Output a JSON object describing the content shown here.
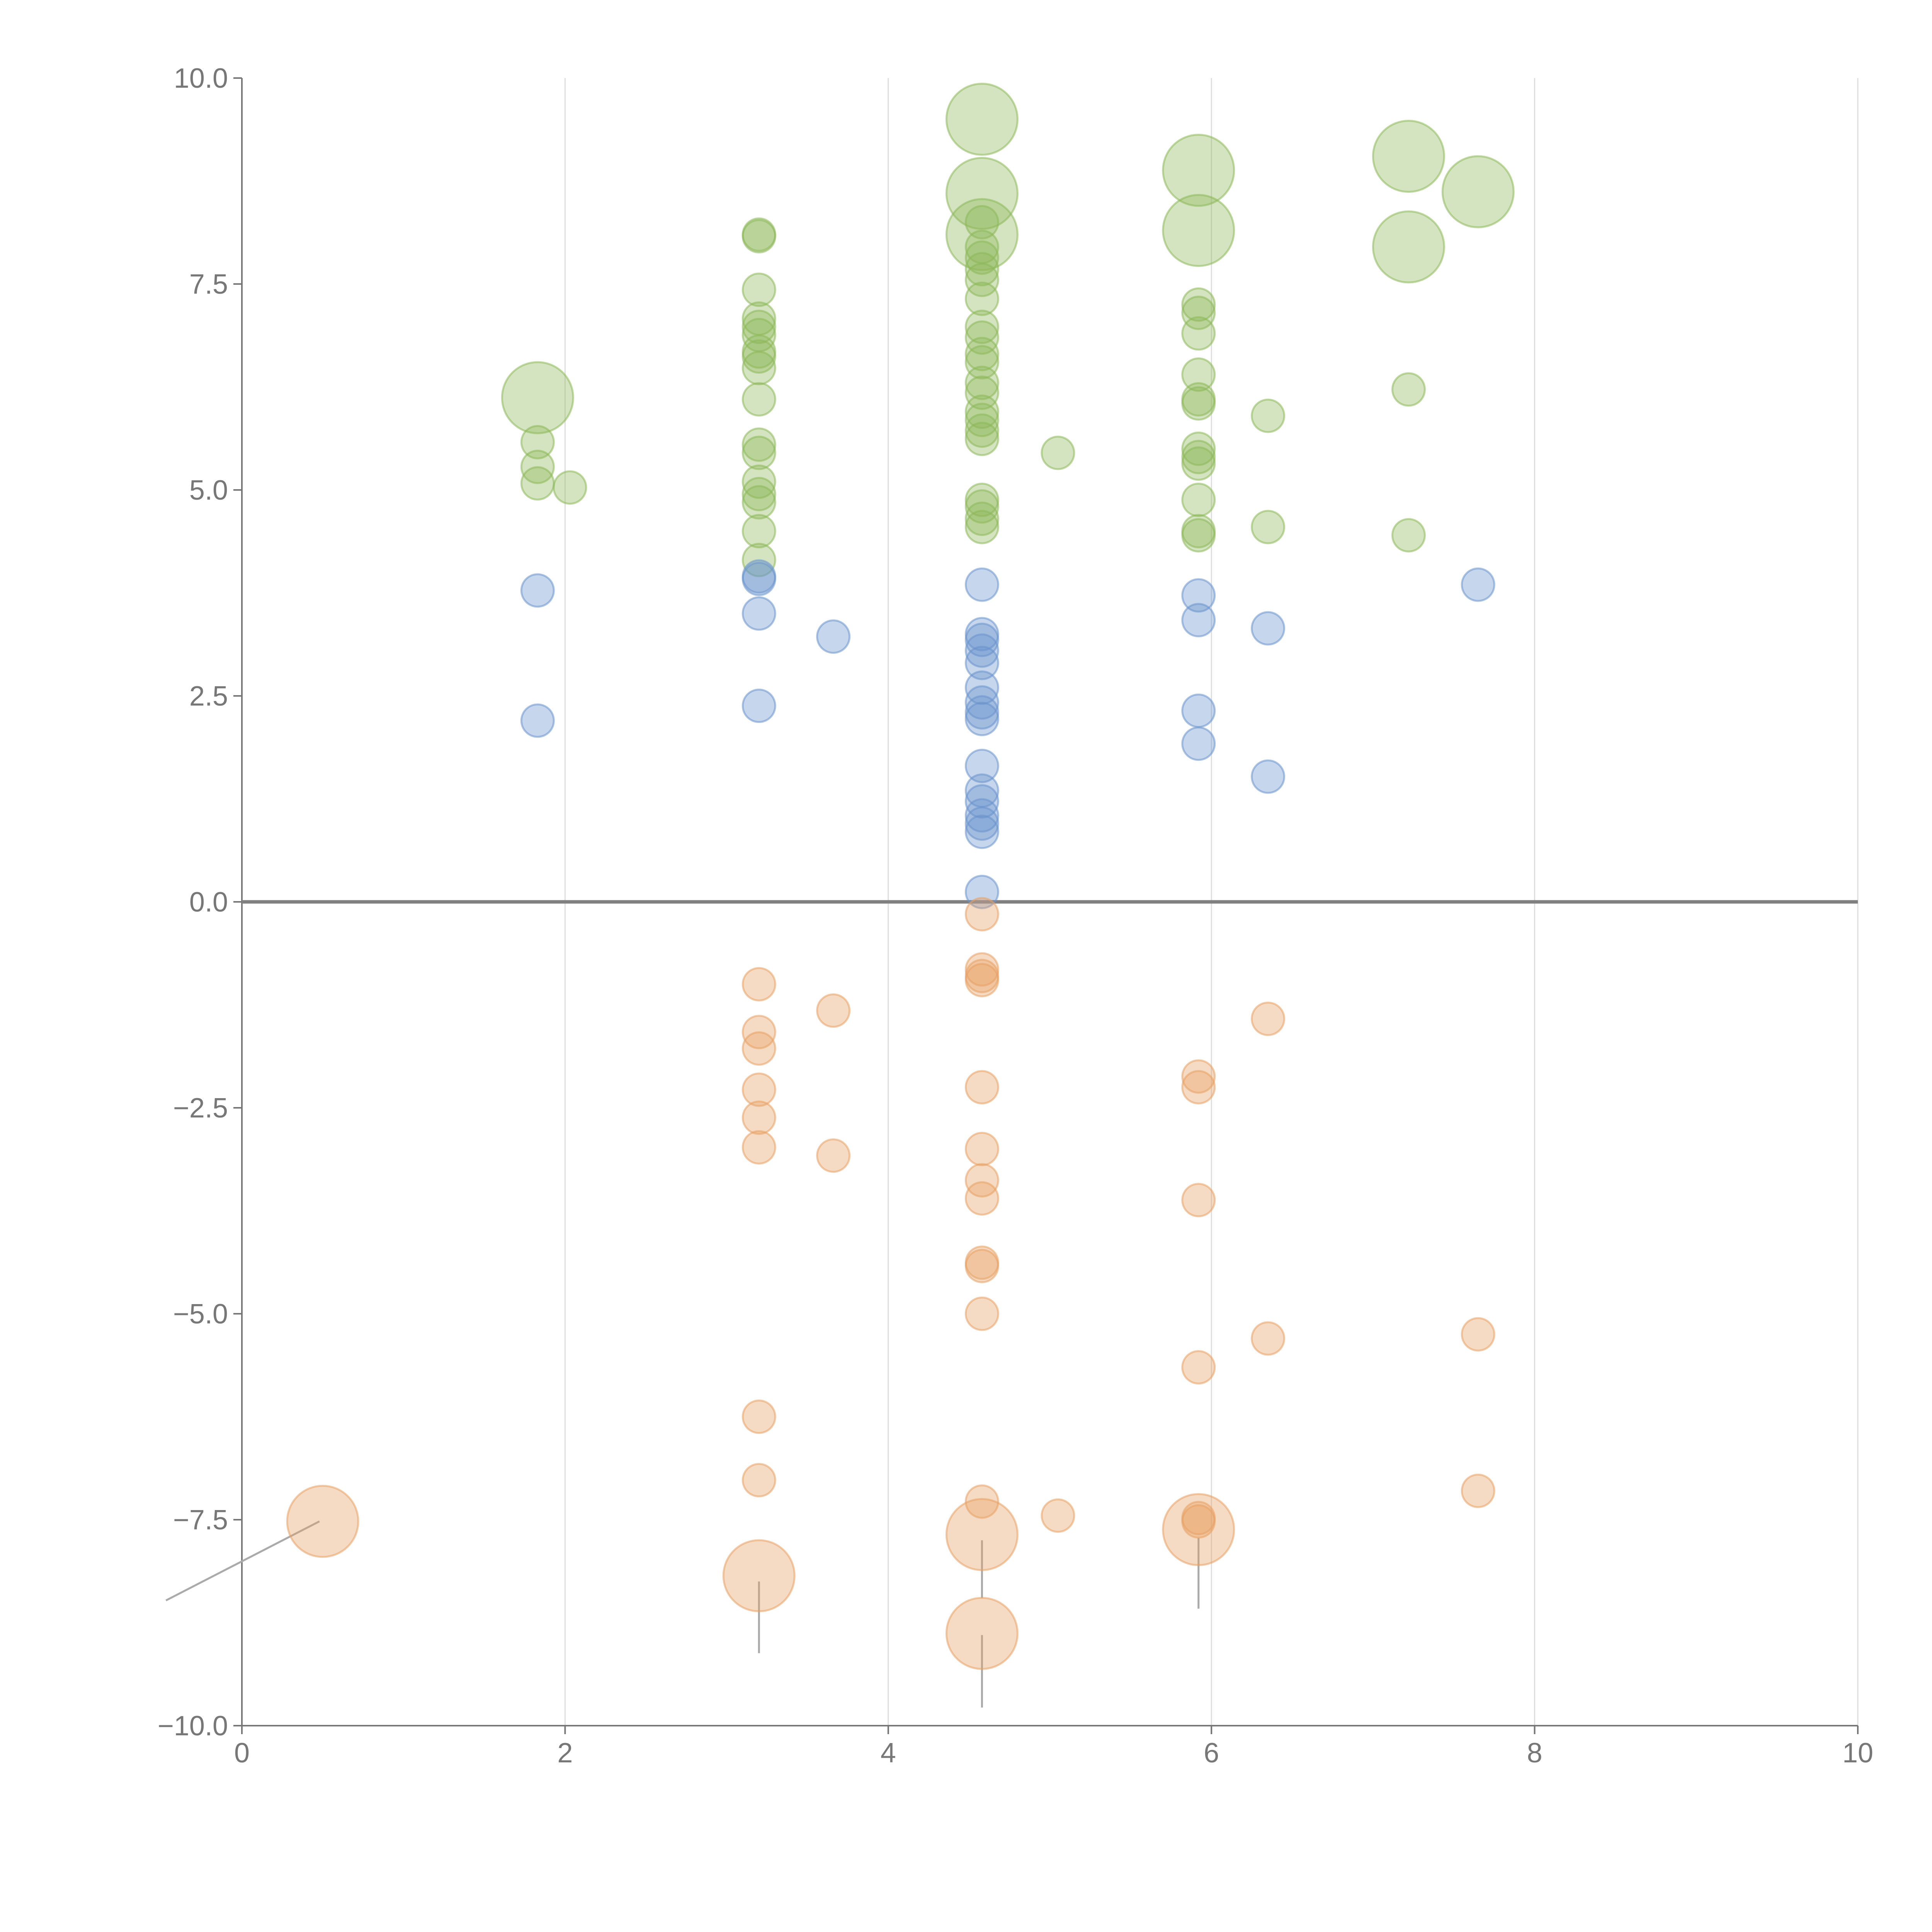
{
  "chart_data": {
    "type": "scatter",
    "title": "",
    "xlabel": "",
    "ylabel": "",
    "xlim": [
      0,
      10
    ],
    "ylim": [
      -10,
      10
    ],
    "grid": "vertical",
    "x_ticks": [
      0,
      2,
      4,
      6,
      8,
      10
    ],
    "x_tick_labels": [
      "0",
      "2",
      "4",
      "6",
      "8",
      "10"
    ],
    "y_ticks": [
      10,
      7.5,
      5,
      2.5,
      0,
      -2.5,
      -5,
      -7.5,
      -10
    ],
    "y_tick_labels": [
      "10.0",
      "7.5",
      "5.0",
      "2.5",
      "0.0",
      "−2.5",
      "−5.0",
      "−7.5",
      "−10.0"
    ],
    "reference_line_y": 0,
    "series": [
      {
        "name": "green",
        "color": "#8db85a",
        "points": [
          {
            "x": 1.83,
            "y": 6.12,
            "r": 3
          },
          {
            "x": 1.83,
            "y": 5.58,
            "r": 1
          },
          {
            "x": 1.83,
            "y": 5.28,
            "r": 1
          },
          {
            "x": 1.83,
            "y": 5.08,
            "r": 1
          },
          {
            "x": 2.03,
            "y": 5.03,
            "r": 1
          },
          {
            "x": 3.2,
            "y": 8.1,
            "r": 1
          },
          {
            "x": 3.2,
            "y": 8.08,
            "r": 1
          },
          {
            "x": 3.2,
            "y": 7.43,
            "r": 1
          },
          {
            "x": 3.2,
            "y": 7.08,
            "r": 1
          },
          {
            "x": 3.2,
            "y": 6.98,
            "r": 1
          },
          {
            "x": 3.2,
            "y": 6.88,
            "r": 1
          },
          {
            "x": 3.2,
            "y": 6.68,
            "r": 1
          },
          {
            "x": 3.2,
            "y": 6.62,
            "r": 1
          },
          {
            "x": 3.2,
            "y": 6.48,
            "r": 1
          },
          {
            "x": 3.2,
            "y": 6.1,
            "r": 1
          },
          {
            "x": 3.2,
            "y": 5.55,
            "r": 1
          },
          {
            "x": 3.2,
            "y": 5.45,
            "r": 1
          },
          {
            "x": 3.2,
            "y": 5.1,
            "r": 1
          },
          {
            "x": 3.2,
            "y": 4.95,
            "r": 1
          },
          {
            "x": 3.2,
            "y": 4.85,
            "r": 1
          },
          {
            "x": 3.2,
            "y": 4.5,
            "r": 1
          },
          {
            "x": 3.2,
            "y": 4.15,
            "r": 1
          },
          {
            "x": 4.58,
            "y": 9.5,
            "r": 3
          },
          {
            "x": 4.58,
            "y": 8.6,
            "r": 3
          },
          {
            "x": 4.58,
            "y": 8.1,
            "r": 3
          },
          {
            "x": 4.58,
            "y": 8.25,
            "r": 1
          },
          {
            "x": 4.58,
            "y": 7.95,
            "r": 1
          },
          {
            "x": 4.58,
            "y": 7.82,
            "r": 1
          },
          {
            "x": 4.58,
            "y": 7.68,
            "r": 1
          },
          {
            "x": 4.58,
            "y": 7.55,
            "r": 1
          },
          {
            "x": 4.58,
            "y": 7.32,
            "r": 1
          },
          {
            "x": 4.58,
            "y": 6.98,
            "r": 1
          },
          {
            "x": 4.58,
            "y": 6.85,
            "r": 1
          },
          {
            "x": 4.58,
            "y": 6.65,
            "r": 1
          },
          {
            "x": 4.58,
            "y": 6.55,
            "r": 1
          },
          {
            "x": 4.58,
            "y": 6.3,
            "r": 1
          },
          {
            "x": 4.58,
            "y": 6.18,
            "r": 1
          },
          {
            "x": 4.58,
            "y": 5.95,
            "r": 1
          },
          {
            "x": 4.58,
            "y": 5.85,
            "r": 1
          },
          {
            "x": 4.58,
            "y": 5.72,
            "r": 1
          },
          {
            "x": 4.58,
            "y": 5.62,
            "r": 1
          },
          {
            "x": 4.58,
            "y": 4.88,
            "r": 1
          },
          {
            "x": 4.58,
            "y": 4.8,
            "r": 1
          },
          {
            "x": 4.58,
            "y": 4.65,
            "r": 1
          },
          {
            "x": 4.58,
            "y": 4.55,
            "r": 1
          },
          {
            "x": 5.05,
            "y": 5.45,
            "r": 1
          },
          {
            "x": 5.92,
            "y": 8.88,
            "r": 3
          },
          {
            "x": 5.92,
            "y": 8.15,
            "r": 3
          },
          {
            "x": 5.92,
            "y": 7.25,
            "r": 1
          },
          {
            "x": 5.92,
            "y": 7.15,
            "r": 1
          },
          {
            "x": 5.92,
            "y": 6.9,
            "r": 1
          },
          {
            "x": 5.92,
            "y": 6.4,
            "r": 1
          },
          {
            "x": 5.92,
            "y": 6.1,
            "r": 1
          },
          {
            "x": 5.92,
            "y": 6.05,
            "r": 1
          },
          {
            "x": 5.92,
            "y": 5.5,
            "r": 1
          },
          {
            "x": 5.92,
            "y": 5.4,
            "r": 1
          },
          {
            "x": 5.92,
            "y": 5.32,
            "r": 1
          },
          {
            "x": 5.92,
            "y": 4.88,
            "r": 1
          },
          {
            "x": 5.92,
            "y": 4.5,
            "r": 1
          },
          {
            "x": 5.92,
            "y": 4.45,
            "r": 1
          },
          {
            "x": 6.35,
            "y": 5.9,
            "r": 1
          },
          {
            "x": 6.35,
            "y": 4.55,
            "r": 1
          },
          {
            "x": 7.22,
            "y": 9.05,
            "r": 3
          },
          {
            "x": 7.22,
            "y": 7.95,
            "r": 3
          },
          {
            "x": 7.22,
            "y": 6.22,
            "r": 1
          },
          {
            "x": 7.22,
            "y": 4.45,
            "r": 1
          },
          {
            "x": 7.65,
            "y": 8.62,
            "r": 3
          }
        ]
      },
      {
        "name": "blue",
        "color": "#6a93cc",
        "points": [
          {
            "x": 1.83,
            "y": 3.78,
            "r": 1
          },
          {
            "x": 1.83,
            "y": 2.2,
            "r": 1
          },
          {
            "x": 3.2,
            "y": 3.95,
            "r": 1
          },
          {
            "x": 3.2,
            "y": 3.92,
            "r": 1
          },
          {
            "x": 3.2,
            "y": 3.5,
            "r": 1
          },
          {
            "x": 3.2,
            "y": 2.38,
            "r": 1
          },
          {
            "x": 3.66,
            "y": 3.22,
            "r": 1
          },
          {
            "x": 4.58,
            "y": 3.85,
            "r": 1
          },
          {
            "x": 4.58,
            "y": 3.25,
            "r": 1
          },
          {
            "x": 4.58,
            "y": 3.18,
            "r": 1
          },
          {
            "x": 4.58,
            "y": 3.05,
            "r": 1
          },
          {
            "x": 4.58,
            "y": 2.9,
            "r": 1
          },
          {
            "x": 4.58,
            "y": 2.6,
            "r": 1
          },
          {
            "x": 4.58,
            "y": 2.42,
            "r": 1
          },
          {
            "x": 4.58,
            "y": 2.3,
            "r": 1
          },
          {
            "x": 4.58,
            "y": 2.22,
            "r": 1
          },
          {
            "x": 4.58,
            "y": 1.65,
            "r": 1
          },
          {
            "x": 4.58,
            "y": 1.35,
            "r": 1
          },
          {
            "x": 4.58,
            "y": 1.22,
            "r": 1
          },
          {
            "x": 4.58,
            "y": 1.05,
            "r": 1
          },
          {
            "x": 4.58,
            "y": 0.95,
            "r": 1
          },
          {
            "x": 4.58,
            "y": 0.85,
            "r": 1
          },
          {
            "x": 4.58,
            "y": 0.12,
            "r": 1
          },
          {
            "x": 5.92,
            "y": 3.72,
            "r": 1
          },
          {
            "x": 5.92,
            "y": 3.42,
            "r": 1
          },
          {
            "x": 5.92,
            "y": 2.32,
            "r": 1
          },
          {
            "x": 5.92,
            "y": 1.92,
            "r": 1
          },
          {
            "x": 6.35,
            "y": 3.32,
            "r": 1
          },
          {
            "x": 6.35,
            "y": 1.52,
            "r": 1
          },
          {
            "x": 7.65,
            "y": 3.85,
            "r": 1
          }
        ]
      },
      {
        "name": "orange",
        "color": "#e8a065",
        "points": [
          {
            "x": 0.5,
            "y": -7.52,
            "r": 3
          },
          {
            "x": 3.2,
            "y": -1.0,
            "r": 1
          },
          {
            "x": 3.2,
            "y": -1.58,
            "r": 1
          },
          {
            "x": 3.2,
            "y": -1.78,
            "r": 1
          },
          {
            "x": 3.2,
            "y": -2.28,
            "r": 1
          },
          {
            "x": 3.2,
            "y": -2.62,
            "r": 1
          },
          {
            "x": 3.2,
            "y": -2.98,
            "r": 1
          },
          {
            "x": 3.2,
            "y": -6.25,
            "r": 1
          },
          {
            "x": 3.2,
            "y": -7.02,
            "r": 1
          },
          {
            "x": 3.2,
            "y": -8.18,
            "r": 3
          },
          {
            "x": 3.66,
            "y": -1.32,
            "r": 1
          },
          {
            "x": 3.66,
            "y": -3.08,
            "r": 1
          },
          {
            "x": 4.58,
            "y": -0.15,
            "r": 1
          },
          {
            "x": 4.58,
            "y": -0.82,
            "r": 1
          },
          {
            "x": 4.58,
            "y": -0.9,
            "r": 1
          },
          {
            "x": 4.58,
            "y": -0.95,
            "r": 1
          },
          {
            "x": 4.58,
            "y": -2.25,
            "r": 1
          },
          {
            "x": 4.58,
            "y": -3.0,
            "r": 1
          },
          {
            "x": 4.58,
            "y": -3.38,
            "r": 1
          },
          {
            "x": 4.58,
            "y": -3.6,
            "r": 1
          },
          {
            "x": 4.58,
            "y": -4.38,
            "r": 1
          },
          {
            "x": 4.58,
            "y": -4.42,
            "r": 1
          },
          {
            "x": 4.58,
            "y": -5.0,
            "r": 1
          },
          {
            "x": 4.58,
            "y": -7.28,
            "r": 1
          },
          {
            "x": 4.58,
            "y": -7.68,
            "r": 3
          },
          {
            "x": 4.58,
            "y": -8.88,
            "r": 3
          },
          {
            "x": 5.05,
            "y": -7.45,
            "r": 1
          },
          {
            "x": 5.92,
            "y": -2.12,
            "r": 1
          },
          {
            "x": 5.92,
            "y": -2.25,
            "r": 1
          },
          {
            "x": 5.92,
            "y": -3.62,
            "r": 1
          },
          {
            "x": 5.92,
            "y": -5.65,
            "r": 1
          },
          {
            "x": 5.92,
            "y": -7.48,
            "r": 1
          },
          {
            "x": 5.92,
            "y": -7.52,
            "r": 1
          },
          {
            "x": 5.92,
            "y": -7.62,
            "r": 3
          },
          {
            "x": 6.35,
            "y": -1.42,
            "r": 1
          },
          {
            "x": 6.35,
            "y": -5.3,
            "r": 1
          },
          {
            "x": 7.65,
            "y": -5.25,
            "r": 1
          },
          {
            "x": 7.65,
            "y": -7.15,
            "r": 1
          }
        ]
      }
    ],
    "leader_lines": [
      {
        "from": [
          0.48,
          -7.52
        ],
        "to": [
          -0.47,
          -8.48
        ]
      },
      {
        "from": [
          3.2,
          -8.25
        ],
        "to": [
          3.2,
          -9.12
        ]
      },
      {
        "from": [
          4.58,
          -7.75
        ],
        "to": [
          4.58,
          -8.45
        ]
      },
      {
        "from": [
          4.58,
          -8.9
        ],
        "to": [
          4.58,
          -9.78
        ]
      },
      {
        "from": [
          5.92,
          -7.72
        ],
        "to": [
          5.92,
          -8.58
        ]
      }
    ]
  }
}
